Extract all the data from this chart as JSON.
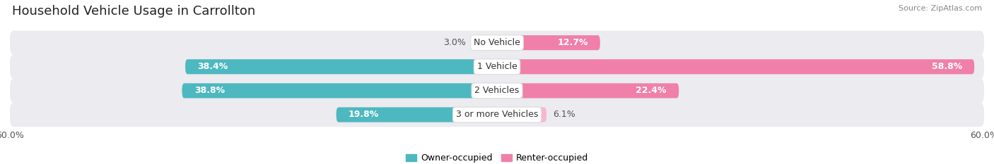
{
  "title": "Household Vehicle Usage in Carrollton",
  "source": "Source: ZipAtlas.com",
  "categories": [
    "No Vehicle",
    "1 Vehicle",
    "2 Vehicles",
    "3 or more Vehicles"
  ],
  "owner_values": [
    3.0,
    38.4,
    38.8,
    19.8
  ],
  "renter_values": [
    12.7,
    58.8,
    22.4,
    6.1
  ],
  "owner_color": "#4db8bf",
  "renter_color": "#f080a8",
  "owner_color_light": "#a8dde0",
  "renter_color_light": "#f8b8cc",
  "owner_label": "Owner-occupied",
  "renter_label": "Renter-occupied",
  "xlim": [
    -60,
    60
  ],
  "bar_height": 0.62,
  "row_bg_color": "#ebebf0",
  "title_fontsize": 13,
  "source_fontsize": 8,
  "value_fontsize": 9,
  "cat_fontsize": 9,
  "tick_fontsize": 9,
  "legend_fontsize": 9
}
